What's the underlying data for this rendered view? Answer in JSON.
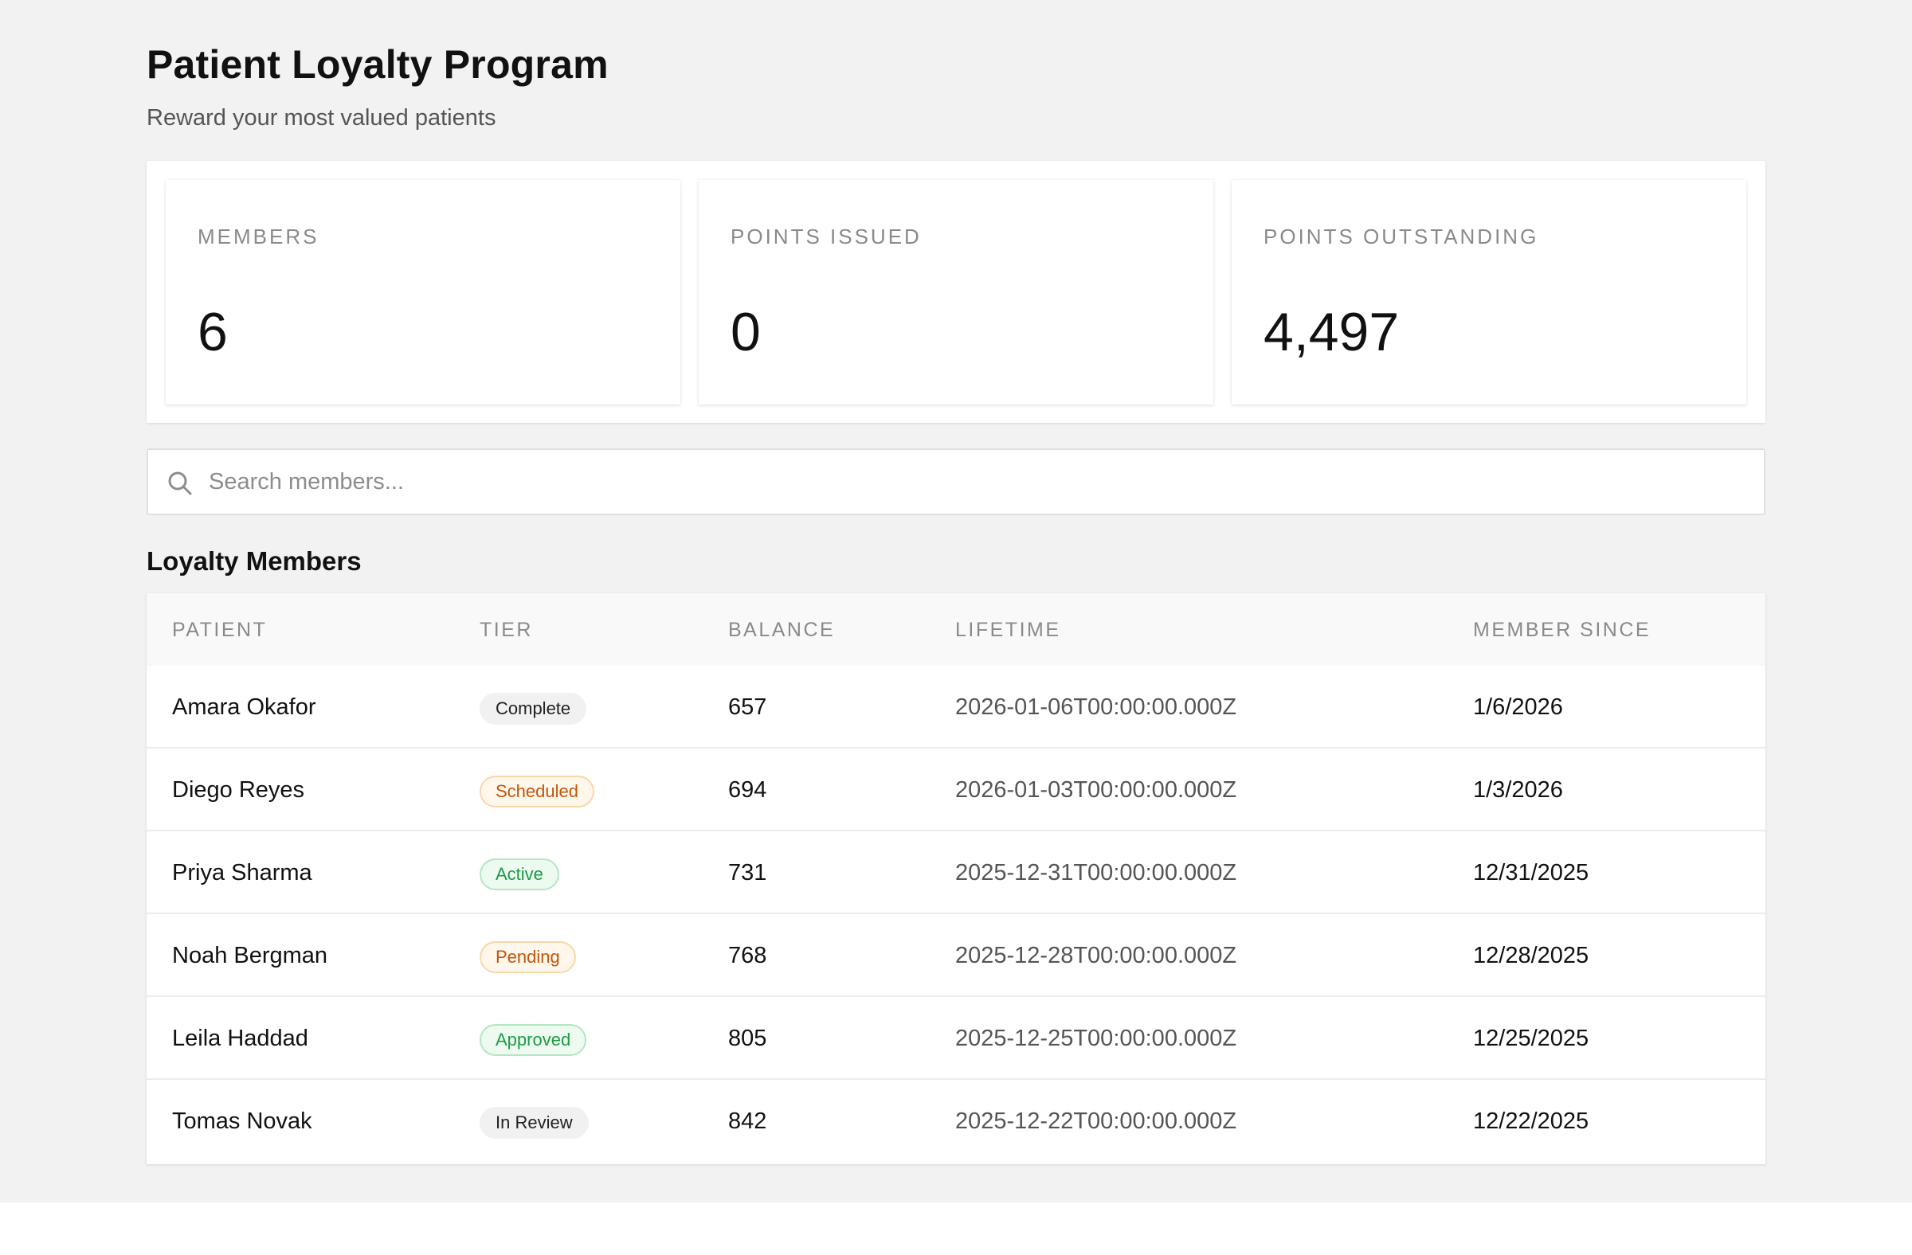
{
  "header": {
    "title": "Patient Loyalty Program",
    "subtitle": "Reward your most valued patients"
  },
  "stats": [
    {
      "label": "MEMBERS",
      "value": "6"
    },
    {
      "label": "POINTS ISSUED",
      "value": "0"
    },
    {
      "label": "POINTS OUTSTANDING",
      "value": "4,497"
    }
  ],
  "search": {
    "placeholder": "Search members...",
    "value": "",
    "icon": "search-icon"
  },
  "members": {
    "title": "Loyalty Members",
    "columns": [
      "PATIENT",
      "TIER",
      "BALANCE",
      "LIFETIME",
      "MEMBER SINCE"
    ],
    "rows": [
      {
        "patient": "Amara Okafor",
        "tier": "Complete",
        "tier_style": "neutral",
        "balance": "657",
        "lifetime": "2026-01-06T00:00:00.000Z",
        "member_since": "1/6/2026"
      },
      {
        "patient": "Diego Reyes",
        "tier": "Scheduled",
        "tier_style": "warning",
        "balance": "694",
        "lifetime": "2026-01-03T00:00:00.000Z",
        "member_since": "1/3/2026"
      },
      {
        "patient": "Priya Sharma",
        "tier": "Active",
        "tier_style": "success",
        "balance": "731",
        "lifetime": "2025-12-31T00:00:00.000Z",
        "member_since": "12/31/2025"
      },
      {
        "patient": "Noah Bergman",
        "tier": "Pending",
        "tier_style": "warning",
        "balance": "768",
        "lifetime": "2025-12-28T00:00:00.000Z",
        "member_since": "12/28/2025"
      },
      {
        "patient": "Leila Haddad",
        "tier": "Approved",
        "tier_style": "success",
        "balance": "805",
        "lifetime": "2025-12-25T00:00:00.000Z",
        "member_since": "12/25/2025"
      },
      {
        "patient": "Tomas Novak",
        "tier": "In Review",
        "tier_style": "neutral",
        "balance": "842",
        "lifetime": "2025-12-22T00:00:00.000Z",
        "member_since": "12/22/2025"
      }
    ]
  },
  "colors": {
    "page_background": "#f2f2f2",
    "neutral_badge": "#f1f1f1",
    "warning_badge_text": "#c2560c",
    "success_badge_text": "#1f9a48"
  }
}
